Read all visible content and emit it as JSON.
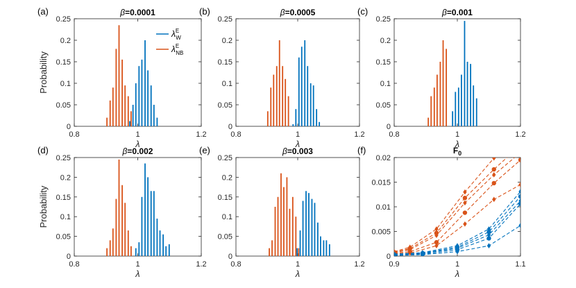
{
  "colors": {
    "W": "#0072bd",
    "NB": "#d95319",
    "axis": "#262626"
  },
  "chart_data": [
    {
      "type": "bar",
      "panel_label": "(a)",
      "title_sym": "β",
      "title_val": "=0.0001",
      "xlabel": "λ",
      "ylabel": "Probability",
      "xlim": [
        0.8,
        1.2
      ],
      "ylim": [
        0,
        0.25
      ],
      "xticks": [
        "0.8",
        "1",
        "1.2"
      ],
      "yticks": [
        "0",
        "0.05",
        "0.1",
        "0.15",
        "0.2",
        "0.25"
      ],
      "legend": {
        "position": "top-right",
        "entries": [
          {
            "sym": "λ",
            "sup": "E",
            "sub": "W",
            "series": "W"
          },
          {
            "sym": "λ",
            "sup": "E",
            "sub": "NB",
            "series": "NB"
          }
        ]
      },
      "series": [
        {
          "key": "NB",
          "x": [
            0.903,
            0.913,
            0.922,
            0.932,
            0.941,
            0.951,
            0.96,
            0.97,
            0.979
          ],
          "values": [
            0.02,
            0.06,
            0.09,
            0.18,
            0.235,
            0.155,
            0.095,
            0.07,
            0.035
          ]
        },
        {
          "key": "W",
          "x": [
            0.975,
            0.985,
            0.994,
            1.004,
            1.013,
            1.023,
            1.032,
            1.042,
            1.051,
            1.061
          ],
          "values": [
            0.012,
            0.05,
            0.1,
            0.14,
            0.155,
            0.2,
            0.13,
            0.095,
            0.05,
            0.02
          ]
        }
      ]
    },
    {
      "type": "bar",
      "panel_label": "(b)",
      "title_sym": "β",
      "title_val": "=0.0005",
      "xlabel": "λ",
      "ylabel": "",
      "xlim": [
        0.8,
        1.2
      ],
      "ylim": [
        0,
        0.25
      ],
      "xticks": [
        "0.8",
        "1",
        "1.2"
      ],
      "yticks": [
        "0",
        "0.05",
        "0.1",
        "0.15",
        "0.2",
        "0.25"
      ],
      "series": [
        {
          "key": "NB",
          "x": [
            0.903,
            0.913,
            0.922,
            0.932,
            0.941,
            0.951,
            0.96,
            0.97
          ],
          "values": [
            0.035,
            0.09,
            0.12,
            0.14,
            0.2,
            0.14,
            0.11,
            0.07
          ]
        },
        {
          "key": "W",
          "x": [
            0.985,
            0.994,
            1.004,
            1.013,
            1.023,
            1.032,
            1.042,
            1.051,
            1.061,
            1.07
          ],
          "values": [
            0.005,
            0.04,
            0.16,
            0.185,
            0.2,
            0.14,
            0.1,
            0.095,
            0.04,
            0.01
          ]
        }
      ]
    },
    {
      "type": "bar",
      "panel_label": "(c)",
      "title_sym": "β",
      "title_val": "=0.001",
      "xlabel": "λ",
      "ylabel": "",
      "xlim": [
        0.8,
        1.2
      ],
      "ylim": [
        0,
        0.25
      ],
      "xticks": [
        "0.8",
        "1",
        "1.2"
      ],
      "yticks": [
        "0",
        "0.05",
        "0.1",
        "0.15",
        "0.2",
        "0.25"
      ],
      "series": [
        {
          "key": "NB",
          "x": [
            0.908,
            0.917,
            0.927,
            0.936,
            0.946,
            0.955,
            0.965
          ],
          "values": [
            0.02,
            0.07,
            0.09,
            0.12,
            0.15,
            0.2,
            0.18
          ]
        },
        {
          "key": "W",
          "x": [
            0.985,
            0.994,
            1.004,
            1.013,
            1.023,
            1.032,
            1.042,
            1.051,
            1.061
          ],
          "values": [
            0.035,
            0.08,
            0.09,
            0.12,
            0.245,
            0.15,
            0.145,
            0.095,
            0.065
          ]
        }
      ]
    },
    {
      "type": "bar",
      "panel_label": "(d)",
      "title_sym": "β",
      "title_val": "=0.002",
      "xlabel": "λ",
      "ylabel": "Probability",
      "xlim": [
        0.8,
        1.2
      ],
      "ylim": [
        0,
        0.25
      ],
      "xticks": [
        "0.8",
        "1",
        "1.2"
      ],
      "yticks": [
        "0",
        "0.05",
        "0.1",
        "0.15",
        "0.2",
        "0.25"
      ],
      "series": [
        {
          "key": "NB",
          "x": [
            0.903,
            0.913,
            0.922,
            0.932,
            0.941,
            0.951,
            0.96,
            0.97,
            0.979
          ],
          "values": [
            0.02,
            0.04,
            0.07,
            0.145,
            0.245,
            0.18,
            0.135,
            0.065,
            0.025
          ]
        },
        {
          "key": "W",
          "x": [
            0.994,
            1.004,
            1.013,
            1.023,
            1.032,
            1.042,
            1.051,
            1.061,
            1.07,
            1.08,
            1.089,
            1.099
          ],
          "values": [
            0.02,
            0.035,
            0.15,
            0.235,
            0.2,
            0.165,
            0.165,
            0.095,
            0.065,
            0.055,
            0.025,
            0.03
          ]
        }
      ]
    },
    {
      "type": "bar",
      "panel_label": "(e)",
      "title_sym": "β",
      "title_val": "=0.003",
      "xlabel": "λ",
      "ylabel": "",
      "xlim": [
        0.8,
        1.2
      ],
      "ylim": [
        0,
        0.25
      ],
      "xticks": [
        "0.8",
        "1",
        "1.2"
      ],
      "yticks": [
        "0",
        "0.05",
        "0.1",
        "0.15",
        "0.2",
        "0.25"
      ],
      "series": [
        {
          "key": "NB",
          "x": [
            0.908,
            0.917,
            0.927,
            0.936,
            0.946,
            0.955,
            0.965,
            0.974,
            0.984,
            0.994,
            1.003
          ],
          "values": [
            0.02,
            0.04,
            0.125,
            0.15,
            0.21,
            0.175,
            0.2,
            0.12,
            0.15,
            0.1,
            0.02
          ]
        },
        {
          "key": "W",
          "x": [
            0.998,
            1.008,
            1.017,
            1.027,
            1.036,
            1.046,
            1.055,
            1.065,
            1.074,
            1.084,
            1.093,
            1.103
          ],
          "values": [
            0.02,
            0.065,
            0.14,
            0.165,
            0.16,
            0.145,
            0.135,
            0.085,
            0.05,
            0.04,
            0.04,
            0.03
          ]
        }
      ]
    },
    {
      "type": "line",
      "panel_label": "(f)",
      "title": "F",
      "title_sub": "0",
      "xlabel": "λ",
      "ylabel": "",
      "xlim": [
        0.9,
        1.1
      ],
      "ylim": [
        0,
        0.02
      ],
      "xticks": [
        "0.9",
        "1",
        "1.1"
      ],
      "yticks": [
        "0",
        "0.005",
        "0.01",
        "0.015",
        "0.02"
      ],
      "series": [
        {
          "key": "NB",
          "marker": "diamond",
          "x": [
            0.9,
            0.925,
            0.967,
            1.012,
            1.058,
            1.1
          ],
          "values": [
            0.0009,
            0.0018,
            0.0055,
            0.013,
            0.0199,
            0.0245
          ]
        },
        {
          "key": "NB",
          "marker": "circle",
          "x": [
            0.9,
            0.925,
            0.967,
            1.012,
            1.058,
            1.1
          ],
          "values": [
            0.0008,
            0.0015,
            0.0047,
            0.0118,
            0.0176,
            0.0225
          ]
        },
        {
          "key": "NB",
          "marker": "diamond",
          "x": [
            0.9,
            0.925,
            0.967,
            1.012,
            1.058,
            1.1
          ],
          "values": [
            0.0007,
            0.0013,
            0.0042,
            0.0108,
            0.0165,
            0.021
          ]
        },
        {
          "key": "NB",
          "marker": "circle",
          "x": [
            0.9,
            0.925,
            0.967,
            1.012,
            1.058,
            1.1
          ],
          "values": [
            0.0006,
            0.0009,
            0.0028,
            0.0088,
            0.0148,
            0.0195
          ]
        },
        {
          "key": "NB",
          "marker": "diamond",
          "x": [
            0.9,
            0.925,
            0.967,
            1.012,
            1.058,
            1.1
          ],
          "values": [
            0.0005,
            0.0006,
            0.0021,
            0.0065,
            0.0115,
            0.0145
          ]
        },
        {
          "key": "W",
          "marker": "diamond",
          "x": [
            0.9,
            0.945,
            1.0,
            1.05,
            1.1
          ],
          "values": [
            0.0004,
            0.0007,
            0.0021,
            0.0055,
            0.0131
          ]
        },
        {
          "key": "W",
          "marker": "circle",
          "x": [
            0.9,
            0.945,
            1.0,
            1.05,
            1.1
          ],
          "values": [
            0.0003,
            0.0006,
            0.0018,
            0.0049,
            0.0121
          ]
        },
        {
          "key": "W",
          "marker": "diamond",
          "x": [
            0.9,
            0.945,
            1.0,
            1.05,
            1.1
          ],
          "values": [
            0.0003,
            0.0005,
            0.0016,
            0.0043,
            0.0112
          ]
        },
        {
          "key": "W",
          "marker": "circle",
          "x": [
            0.9,
            0.945,
            1.0,
            1.05,
            1.1
          ],
          "values": [
            0.0002,
            0.0004,
            0.0013,
            0.0036,
            0.0106
          ]
        },
        {
          "key": "W",
          "marker": "diamond",
          "x": [
            0.9,
            0.945,
            1.0,
            1.05,
            1.1
          ],
          "values": [
            0.0001,
            0.0003,
            0.0009,
            0.0021,
            0.0062
          ]
        }
      ]
    }
  ]
}
